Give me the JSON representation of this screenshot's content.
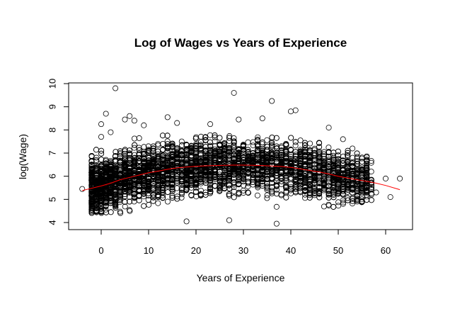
{
  "chart_data": {
    "type": "scatter",
    "title": "Log of Wages vs Years of Experience",
    "xlabel": "Years of Experience",
    "ylabel": "log(Wage)",
    "xlim": [
      -5,
      65
    ],
    "ylim": [
      3.85,
      10.1
    ],
    "x_ticks": [
      0,
      10,
      20,
      30,
      40,
      50,
      60
    ],
    "y_ticks": [
      4,
      5,
      6,
      7,
      8,
      9,
      10
    ],
    "grid": false,
    "point_marker": "open-circle",
    "point_color": "#000000",
    "cloud": {
      "x_range": [
        -2,
        57
      ],
      "dense_band": [
        [
          0,
          4.4,
          7.6
        ],
        [
          10,
          4.4,
          7.8
        ],
        [
          20,
          4.3,
          7.8
        ],
        [
          30,
          4.3,
          7.8
        ],
        [
          40,
          4.4,
          7.7
        ],
        [
          50,
          4.7,
          7.3
        ],
        [
          56,
          4.9,
          6.9
        ]
      ],
      "n_points": 5000
    },
    "outliers": [
      [
        -4,
        5.45
      ],
      [
        -2,
        5.6
      ],
      [
        -1,
        6.0
      ],
      [
        -1,
        6.8
      ],
      [
        0,
        8.25
      ],
      [
        0,
        7.7
      ],
      [
        1,
        8.7
      ],
      [
        2,
        7.9
      ],
      [
        3,
        9.8
      ],
      [
        5,
        8.45
      ],
      [
        6,
        8.6
      ],
      [
        7,
        8.4
      ],
      [
        9,
        8.2
      ],
      [
        14,
        8.55
      ],
      [
        16,
        8.3
      ],
      [
        23,
        8.25
      ],
      [
        28,
        9.6
      ],
      [
        29,
        8.45
      ],
      [
        34,
        8.5
      ],
      [
        36,
        9.25
      ],
      [
        40,
        8.8
      ],
      [
        41,
        8.85
      ],
      [
        48,
        8.1
      ],
      [
        51,
        7.6
      ],
      [
        53,
        7.2
      ],
      [
        57,
        5.85
      ],
      [
        58,
        5.3
      ],
      [
        60,
        5.9
      ],
      [
        61,
        5.1
      ],
      [
        63,
        5.9
      ],
      [
        27,
        4.1
      ],
      [
        37,
        3.95
      ],
      [
        18,
        4.05
      ]
    ],
    "series": [
      {
        "name": "",
        "kind": "smooth-line",
        "color": "#ff0000",
        "x": [
          -4,
          0,
          2,
          4,
          6,
          8,
          10,
          12,
          14,
          16,
          18,
          20,
          22,
          24,
          26,
          28,
          30,
          32,
          34,
          36,
          38,
          40,
          42,
          44,
          46,
          48,
          50,
          52,
          54,
          56,
          58,
          60,
          63
        ],
        "y": [
          5.38,
          5.58,
          5.7,
          5.85,
          5.95,
          6.05,
          6.15,
          6.22,
          6.3,
          6.36,
          6.4,
          6.43,
          6.45,
          6.46,
          6.47,
          6.48,
          6.48,
          6.47,
          6.46,
          6.44,
          6.42,
          6.38,
          6.32,
          6.25,
          6.18,
          6.1,
          6.0,
          5.92,
          5.85,
          5.78,
          5.7,
          5.6,
          5.42
        ]
      }
    ]
  }
}
